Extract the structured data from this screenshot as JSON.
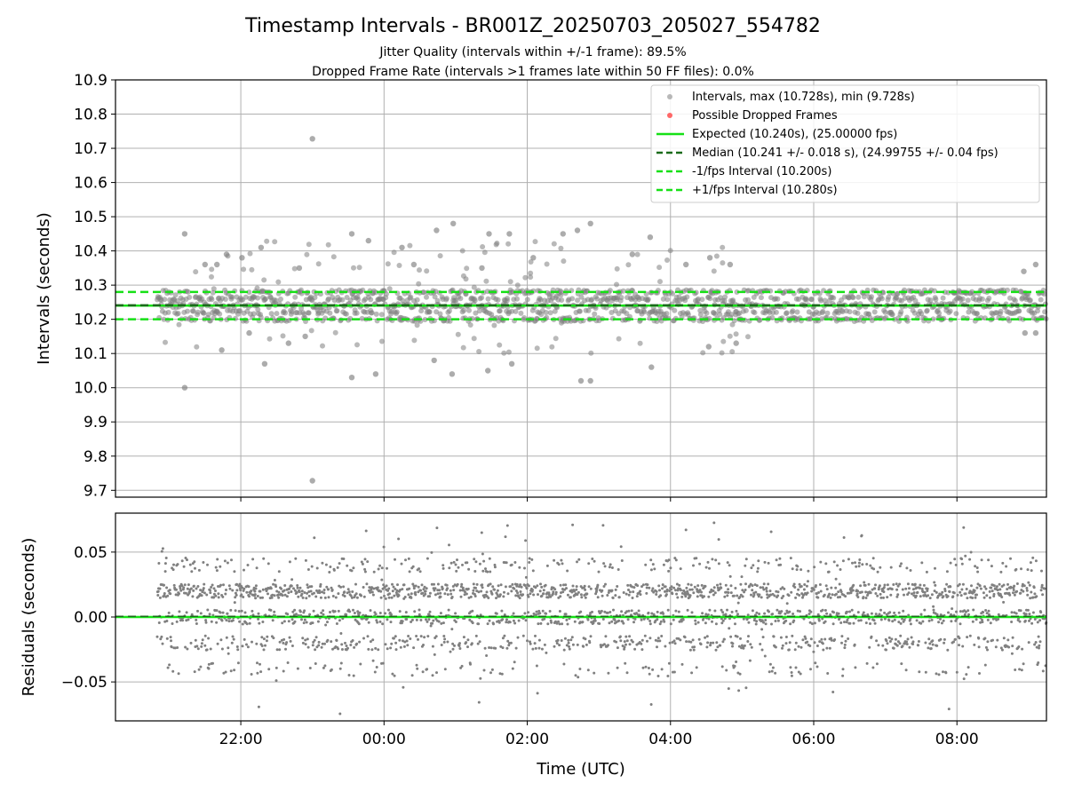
{
  "figure": {
    "title": "Timestamp Intervals - BR001Z_20250703_205027_554782",
    "subtitle_1": "Jitter Quality (intervals within +/-1 frame): 89.5%",
    "subtitle_2": "Dropped Frame Rate (intervals >1 frames late within 50 FF files): 0.0%"
  },
  "chart_data": [
    {
      "type": "scatter",
      "panel": "intervals",
      "ylabel": "Intervals (seconds)",
      "ylim": [
        9.68,
        10.9
      ],
      "yticks": [
        "9.7",
        "9.8",
        "9.9",
        "10.0",
        "10.1",
        "10.2",
        "10.3",
        "10.4",
        "10.5",
        "10.6",
        "10.7",
        "10.8",
        "10.9"
      ],
      "x_range_utc": [
        "20:15",
        "09:15"
      ],
      "grid": true,
      "legend_position": "top-right",
      "legend": [
        "Intervals, max (10.728s), min (9.728s)",
        "Possible Dropped Frames",
        "Expected (10.240s), (25.00000 fps)",
        "Median (10.241 +/- 0.018 s), (24.99755 +/- 0.04 fps)",
        "-1/fps Interval (10.200s)",
        "+1/fps Interval (10.280s)"
      ],
      "reference_lines": {
        "expected": 10.24,
        "median": 10.241,
        "minus_one_fps": 10.2,
        "plus_one_fps": 10.28
      },
      "series_colors": {
        "intervals": "#808080",
        "dropped": "#ff4d4d",
        "expected": "#16e016",
        "median": "#1a6b1a",
        "fps_bounds": "#16e016"
      },
      "data_summary": {
        "max": 10.728,
        "min": 9.728,
        "dropped_frame_count": 0,
        "outliers": [
          {
            "time": "21:13",
            "value": 10.45
          },
          {
            "time": "21:13",
            "value": 10.0
          },
          {
            "time": "21:30",
            "value": 10.36
          },
          {
            "time": "21:40",
            "value": 10.36
          },
          {
            "time": "21:48",
            "value": 10.39
          },
          {
            "time": "21:44",
            "value": 10.11
          },
          {
            "time": "22:01",
            "value": 10.38
          },
          {
            "time": "22:07",
            "value": 10.16
          },
          {
            "time": "22:17",
            "value": 10.41
          },
          {
            "time": "22:20",
            "value": 10.07
          },
          {
            "time": "22:40",
            "value": 10.13
          },
          {
            "time": "22:49",
            "value": 10.35
          },
          {
            "time": "22:54",
            "value": 10.15
          },
          {
            "time": "23:00",
            "value": 10.728
          },
          {
            "time": "23:00",
            "value": 9.728
          },
          {
            "time": "23:33",
            "value": 10.45
          },
          {
            "time": "23:33",
            "value": 10.03
          },
          {
            "time": "23:47",
            "value": 10.43
          },
          {
            "time": "23:53",
            "value": 10.04
          },
          {
            "time": "00:15",
            "value": 10.41
          },
          {
            "time": "00:25",
            "value": 10.36
          },
          {
            "time": "00:42",
            "value": 10.08
          },
          {
            "time": "00:44",
            "value": 10.46
          },
          {
            "time": "00:58",
            "value": 10.48
          },
          {
            "time": "00:57",
            "value": 10.04
          },
          {
            "time": "01:22",
            "value": 10.35
          },
          {
            "time": "01:28",
            "value": 10.45
          },
          {
            "time": "01:45",
            "value": 10.45
          },
          {
            "time": "01:27",
            "value": 10.05
          },
          {
            "time": "01:47",
            "value": 10.07
          },
          {
            "time": "02:05",
            "value": 10.38
          },
          {
            "time": "02:30",
            "value": 10.45
          },
          {
            "time": "02:42",
            "value": 10.46
          },
          {
            "time": "02:53",
            "value": 10.48
          },
          {
            "time": "02:45",
            "value": 10.02
          },
          {
            "time": "02:53",
            "value": 10.02
          },
          {
            "time": "03:28",
            "value": 10.39
          },
          {
            "time": "03:43",
            "value": 10.44
          },
          {
            "time": "03:44",
            "value": 10.06
          },
          {
            "time": "04:13",
            "value": 10.36
          },
          {
            "time": "04:33",
            "value": 10.38
          },
          {
            "time": "04:50",
            "value": 10.36
          },
          {
            "time": "04:55",
            "value": 10.13
          },
          {
            "time": "04:32",
            "value": 10.12
          },
          {
            "time": "08:56",
            "value": 10.34
          },
          {
            "time": "09:06",
            "value": 10.36
          },
          {
            "time": "08:57",
            "value": 10.16
          },
          {
            "time": "09:06",
            "value": 10.16
          }
        ]
      }
    },
    {
      "type": "scatter",
      "panel": "residuals",
      "xlabel": "Time (UTC)",
      "ylabel": "Residuals (seconds)",
      "xticks": [
        "22:00",
        "00:00",
        "02:00",
        "04:00",
        "06:00",
        "08:00"
      ],
      "yticks": [
        "−0.05",
        "0.00",
        "0.05"
      ],
      "ylim": [
        -0.08,
        0.08
      ],
      "grid": true,
      "zero_line_color": "#16e016",
      "point_color": "#808080",
      "bands": [
        -0.04,
        -0.02,
        0.0,
        0.02,
        0.04
      ]
    }
  ]
}
